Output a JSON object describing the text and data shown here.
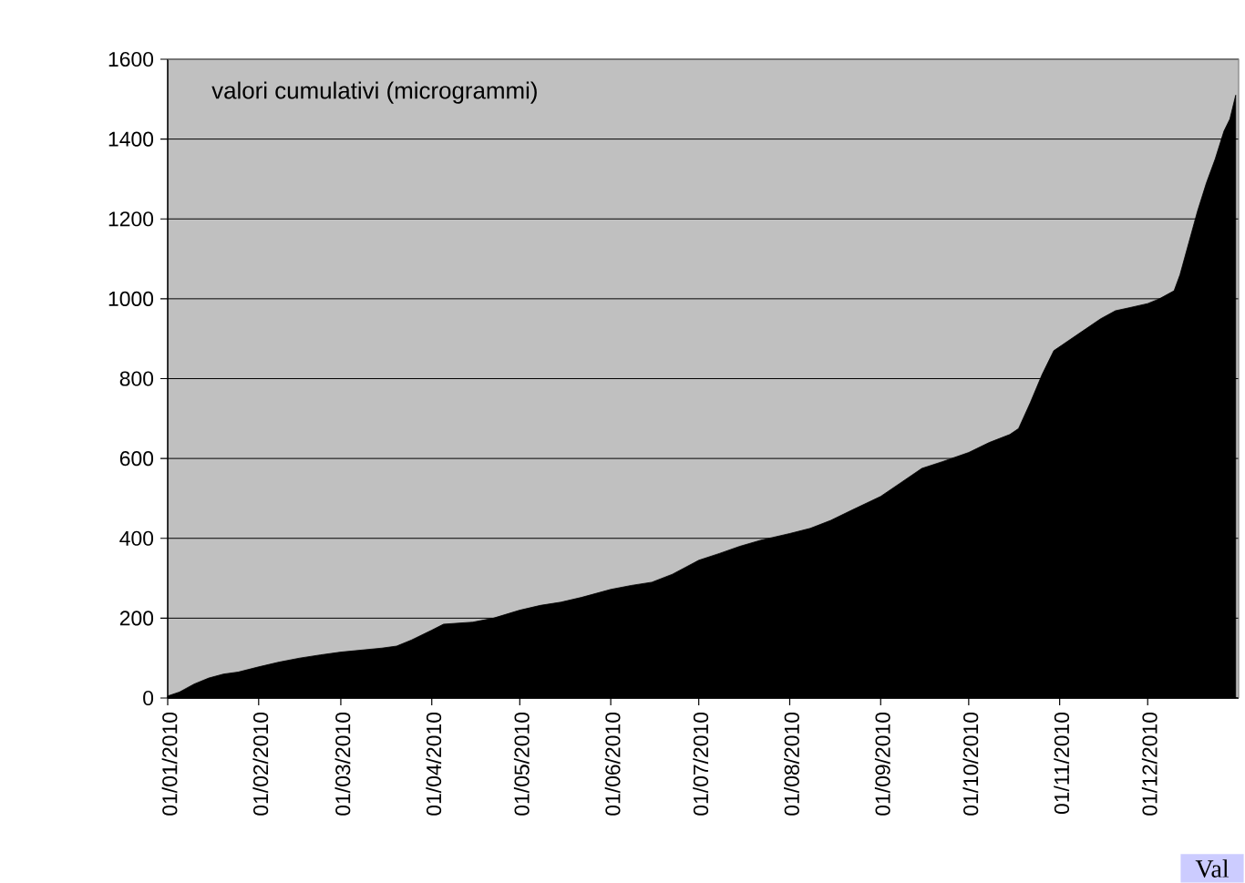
{
  "chart_data": {
    "type": "area",
    "title": "valori cumulativi (microgrammi)",
    "x": [
      "2010-01-01",
      "2010-01-05",
      "2010-01-10",
      "2010-01-15",
      "2010-01-20",
      "2010-01-25",
      "2010-02-01",
      "2010-02-08",
      "2010-02-15",
      "2010-02-22",
      "2010-03-01",
      "2010-03-08",
      "2010-03-15",
      "2010-03-20",
      "2010-03-25",
      "2010-04-01",
      "2010-04-05",
      "2010-04-15",
      "2010-04-22",
      "2010-05-01",
      "2010-05-08",
      "2010-05-15",
      "2010-05-22",
      "2010-06-01",
      "2010-06-08",
      "2010-06-15",
      "2010-06-22",
      "2010-07-01",
      "2010-07-08",
      "2010-07-15",
      "2010-07-22",
      "2010-08-01",
      "2010-08-08",
      "2010-08-15",
      "2010-08-22",
      "2010-09-01",
      "2010-09-08",
      "2010-09-15",
      "2010-09-22",
      "2010-10-01",
      "2010-10-08",
      "2010-10-15",
      "2010-10-18",
      "2010-10-22",
      "2010-10-26",
      "2010-10-30",
      "2010-11-02",
      "2010-11-08",
      "2010-11-15",
      "2010-11-20",
      "2010-11-25",
      "2010-12-01",
      "2010-12-05",
      "2010-12-10",
      "2010-12-12",
      "2010-12-15",
      "2010-12-18",
      "2010-12-21",
      "2010-12-24",
      "2010-12-27",
      "2010-12-29",
      "2010-12-31"
    ],
    "series": [
      {
        "color": "#000000",
        "values": [
          5,
          15,
          35,
          50,
          60,
          65,
          78,
          90,
          100,
          108,
          115,
          120,
          125,
          130,
          145,
          170,
          185,
          190,
          200,
          220,
          232,
          240,
          252,
          272,
          282,
          290,
          310,
          345,
          362,
          380,
          395,
          412,
          425,
          445,
          470,
          505,
          540,
          575,
          592,
          615,
          640,
          660,
          675,
          740,
          810,
          870,
          885,
          915,
          950,
          970,
          978,
          988,
          1000,
          1020,
          1060,
          1140,
          1220,
          1290,
          1350,
          1420,
          1450,
          1510
        ]
      }
    ],
    "xlim": [
      "2010-01-01",
      "2011-01-01"
    ],
    "xticks": [
      {
        "value": "2010-01-01",
        "label": "01/01/2010"
      },
      {
        "value": "2010-02-01",
        "label": "01/02/2010"
      },
      {
        "value": "2010-03-01",
        "label": "01/03/2010"
      },
      {
        "value": "2010-04-01",
        "label": "01/04/2010"
      },
      {
        "value": "2010-05-01",
        "label": "01/05/2010"
      },
      {
        "value": "2010-06-01",
        "label": "01/06/2010"
      },
      {
        "value": "2010-07-01",
        "label": "01/07/2010"
      },
      {
        "value": "2010-08-01",
        "label": "01/08/2010"
      },
      {
        "value": "2010-09-01",
        "label": "01/09/2010"
      },
      {
        "value": "2010-10-01",
        "label": "01/10/2010"
      },
      {
        "value": "2010-11-01",
        "label": "01/11/2010"
      },
      {
        "value": "2010-12-01",
        "label": "01/12/2010"
      }
    ],
    "ylim": [
      0,
      1600
    ],
    "yticks": [
      0,
      200,
      400,
      600,
      800,
      1000,
      1200,
      1400,
      1600
    ],
    "grid": "y",
    "annotations": [
      "Val"
    ]
  }
}
